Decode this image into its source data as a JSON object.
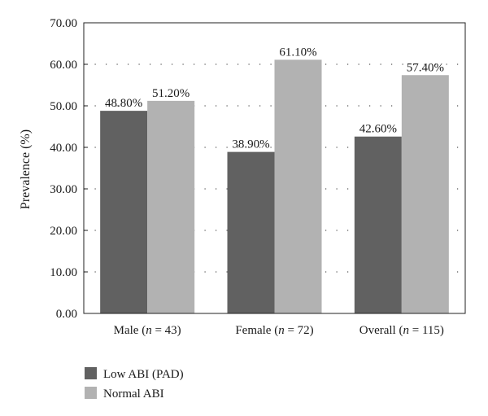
{
  "chart_data": {
    "type": "bar",
    "categories": [
      {
        "prefix": "Male (",
        "var": "n",
        "suffix": " = 43)"
      },
      {
        "prefix": "Female (",
        "var": "n",
        "suffix": " = 72)"
      },
      {
        "prefix": "Overall (",
        "var": "n",
        "suffix": " = 115)"
      }
    ],
    "series": [
      {
        "name": "Low ABI (PAD)",
        "color": "#616161",
        "values": [
          48.8,
          38.9,
          42.6
        ],
        "labels": [
          "48.80%",
          "38.90%",
          "42.60%"
        ]
      },
      {
        "name": "Normal ABI",
        "color": "#b2b2b2",
        "values": [
          51.2,
          61.1,
          57.4
        ],
        "labels": [
          "51.20%",
          "61.10%",
          "57.40%"
        ]
      }
    ],
    "ylabel": "Prevalence (%)",
    "ylim": [
      0,
      70
    ],
    "yticks": [
      "0.00",
      "10.00",
      "20.00",
      "30.00",
      "40.00",
      "50.00",
      "60.00",
      "70.00"
    ],
    "grid": "horizontal dotted",
    "legend_position": "bottom-left"
  }
}
